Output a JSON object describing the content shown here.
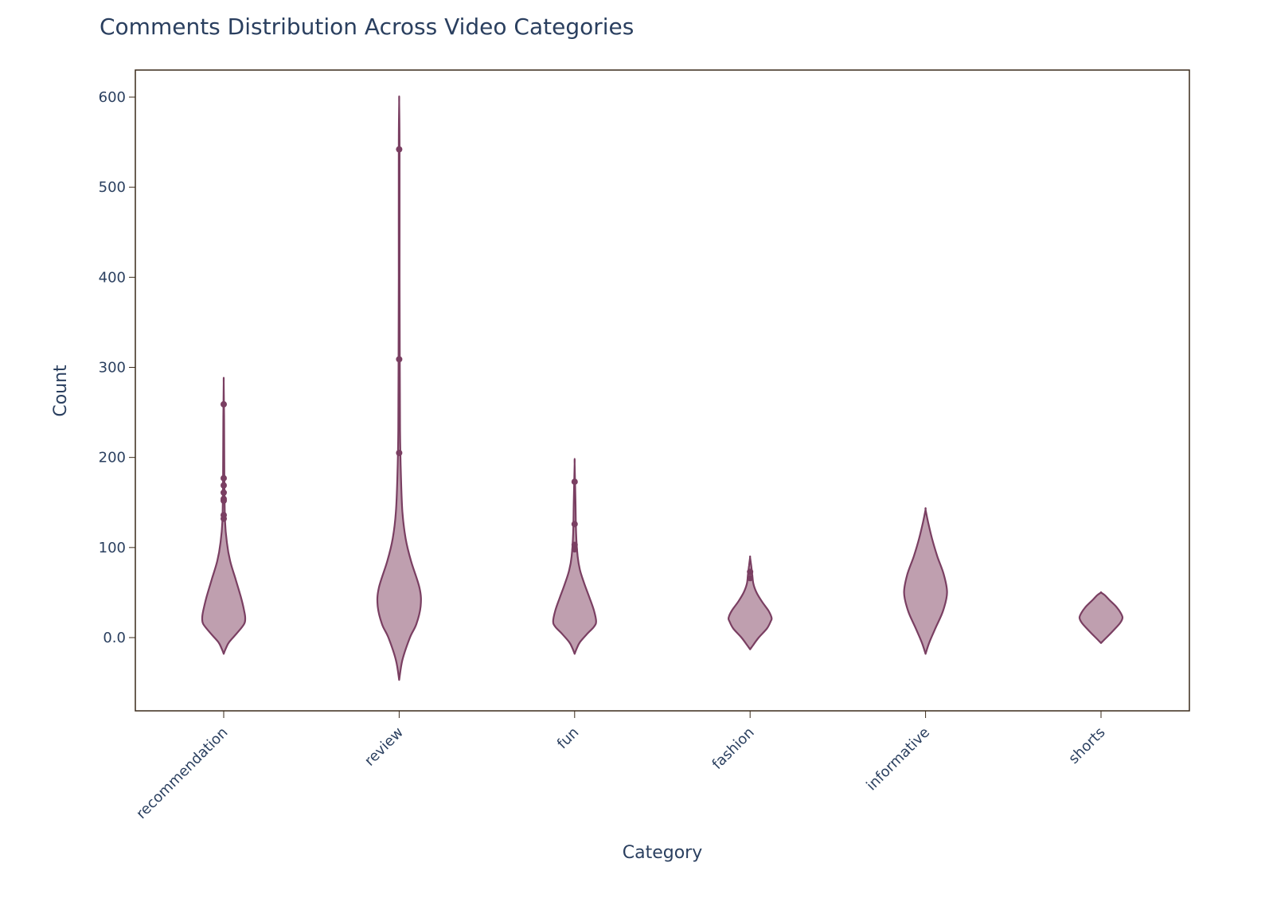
{
  "chart_data": {
    "type": "violin",
    "title": "Comments Distribution Across Video Categories",
    "xlabel": "Category",
    "ylabel": "Count",
    "categories": [
      "recommendation",
      "review",
      "fun",
      "fashion",
      "informative",
      "shorts"
    ],
    "yticks": [
      0,
      100,
      200,
      300,
      400,
      500,
      600
    ],
    "ytick_labels": [
      "0.0",
      "100",
      "200",
      "300",
      "400",
      "500",
      "600"
    ],
    "ylim": [
      -80,
      630
    ],
    "grid": false,
    "legend": "none",
    "colors": {
      "line": "#7a3f62",
      "fill": "#bc9aab",
      "text": "#2a3f5f",
      "frame": "#3a2a1a"
    },
    "violins": [
      {
        "category": "recommendation",
        "min": -18,
        "max": 283,
        "profile": [
          [
            -18,
            0.0
          ],
          [
            -12,
            0.1
          ],
          [
            -5,
            0.25
          ],
          [
            5,
            0.62
          ],
          [
            15,
            0.95
          ],
          [
            22,
            1.0
          ],
          [
            30,
            0.95
          ],
          [
            45,
            0.8
          ],
          [
            65,
            0.55
          ],
          [
            85,
            0.3
          ],
          [
            105,
            0.15
          ],
          [
            130,
            0.06
          ],
          [
            180,
            0.03
          ],
          [
            240,
            0.02
          ],
          [
            283,
            0.0
          ]
        ],
        "outliers": [
          259,
          177,
          169,
          161,
          154,
          152,
          136,
          132
        ]
      },
      {
        "category": "review",
        "min": -47,
        "max": 594,
        "profile": [
          [
            -47,
            0.0
          ],
          [
            -25,
            0.15
          ],
          [
            0,
            0.5
          ],
          [
            15,
            0.8
          ],
          [
            35,
            1.0
          ],
          [
            55,
            0.95
          ],
          [
            85,
            0.55
          ],
          [
            110,
            0.3
          ],
          [
            140,
            0.15
          ],
          [
            180,
            0.08
          ],
          [
            230,
            0.04
          ],
          [
            300,
            0.03
          ],
          [
            400,
            0.02
          ],
          [
            540,
            0.02
          ],
          [
            594,
            0.0
          ]
        ],
        "outliers": [
          542,
          309,
          205
        ]
      },
      {
        "category": "fun",
        "min": -18,
        "max": 193,
        "profile": [
          [
            -18,
            0.0
          ],
          [
            -12,
            0.1
          ],
          [
            -5,
            0.25
          ],
          [
            5,
            0.62
          ],
          [
            12,
            0.9
          ],
          [
            18,
            1.0
          ],
          [
            30,
            0.9
          ],
          [
            45,
            0.68
          ],
          [
            60,
            0.45
          ],
          [
            75,
            0.25
          ],
          [
            90,
            0.14
          ],
          [
            115,
            0.07
          ],
          [
            150,
            0.04
          ],
          [
            193,
            0.0
          ]
        ],
        "outliers": [
          173,
          126,
          103,
          98
        ]
      },
      {
        "category": "fashion",
        "min": -13,
        "max": 89,
        "profile": [
          [
            -13,
            0.0
          ],
          [
            -8,
            0.15
          ],
          [
            0,
            0.4
          ],
          [
            10,
            0.78
          ],
          [
            18,
            0.96
          ],
          [
            22,
            1.0
          ],
          [
            30,
            0.85
          ],
          [
            40,
            0.55
          ],
          [
            50,
            0.3
          ],
          [
            60,
            0.15
          ],
          [
            70,
            0.1
          ],
          [
            80,
            0.05
          ],
          [
            89,
            0.0
          ]
        ],
        "outliers": [
          73,
          66
        ]
      },
      {
        "category": "informative",
        "min": -18,
        "max": 142,
        "profile": [
          [
            -18,
            0.0
          ],
          [
            -5,
            0.18
          ],
          [
            10,
            0.45
          ],
          [
            30,
            0.82
          ],
          [
            50,
            1.0
          ],
          [
            70,
            0.85
          ],
          [
            90,
            0.55
          ],
          [
            110,
            0.3
          ],
          [
            128,
            0.12
          ],
          [
            142,
            0.0
          ]
        ],
        "outliers": []
      },
      {
        "category": "shorts",
        "min": -6,
        "max": 50,
        "profile": [
          [
            -6,
            0.0
          ],
          [
            0,
            0.25
          ],
          [
            8,
            0.58
          ],
          [
            16,
            0.88
          ],
          [
            22,
            1.0
          ],
          [
            28,
            0.9
          ],
          [
            35,
            0.68
          ],
          [
            42,
            0.38
          ],
          [
            47,
            0.18
          ],
          [
            50,
            0.0
          ]
        ],
        "outliers": []
      }
    ]
  }
}
